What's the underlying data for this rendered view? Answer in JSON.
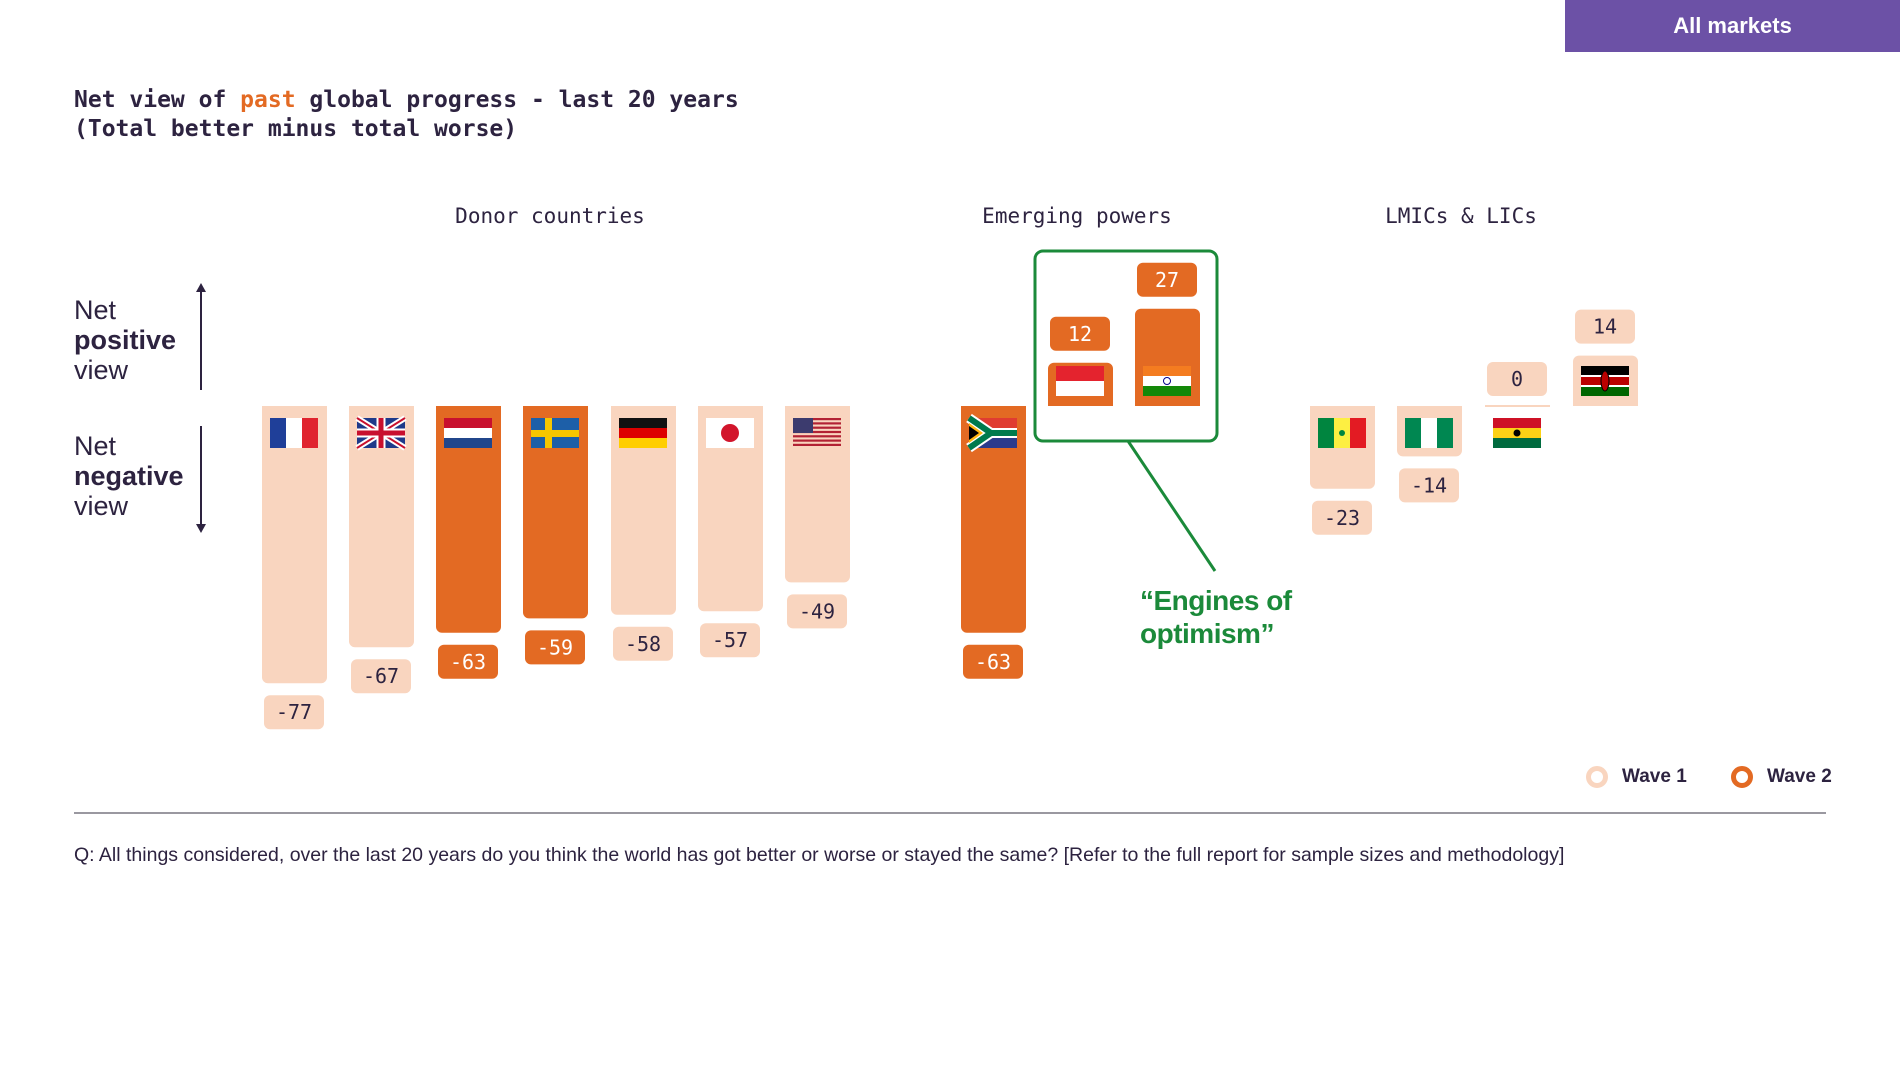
{
  "header": {
    "tab_label": "All markets"
  },
  "title": {
    "prefix": "Net view of ",
    "highlight": "past",
    "suffix": " global progress - last 20 years",
    "line2": "(Total better minus total worse)"
  },
  "axis_labels": {
    "positive": {
      "top": "Net",
      "bold": "positive",
      "bottom": "view"
    },
    "negative": {
      "top": "Net",
      "bold": "negative",
      "bottom": "view"
    }
  },
  "callout": {
    "line1": "“Engines of",
    "line2": "optimism”"
  },
  "legend": {
    "wave1": "Wave 1",
    "wave2": "Wave 2"
  },
  "footnote": "Q: All things considered, over the last 20 years do you think the world has got better or worse or stayed the same? [Refer to the full report for sample sizes and methodology]",
  "colors": {
    "wave1": "#f9d5bf",
    "wave2": "#e36a23",
    "accent_purple": "#6c51a6",
    "callout_green": "#1b8a3a",
    "text": "#2d2340"
  },
  "chart_data": {
    "type": "bar",
    "title": "Net view of past global progress - last 20 years (Total better minus total worse)",
    "groups": [
      {
        "label": "Donor countries",
        "items": [
          {
            "country": "France",
            "flag": "france-flag-icon",
            "value": -77,
            "wave": 1
          },
          {
            "country": "United Kingdom",
            "flag": "uk-flag-icon",
            "value": -67,
            "wave": 1
          },
          {
            "country": "Netherlands",
            "flag": "netherlands-flag-icon",
            "value": -63,
            "wave": 2
          },
          {
            "country": "Sweden",
            "flag": "sweden-flag-icon",
            "value": -59,
            "wave": 2
          },
          {
            "country": "Germany",
            "flag": "germany-flag-icon",
            "value": -58,
            "wave": 1
          },
          {
            "country": "Japan",
            "flag": "japan-flag-icon",
            "value": -57,
            "wave": 1
          },
          {
            "country": "United States",
            "flag": "usa-flag-icon",
            "value": -49,
            "wave": 1
          }
        ]
      },
      {
        "label": "Emerging powers",
        "items": [
          {
            "country": "South Africa",
            "flag": "south-africa-flag-icon",
            "value": -63,
            "wave": 2
          },
          {
            "country": "Indonesia",
            "flag": "indonesia-flag-icon",
            "value": 12,
            "wave": 2
          },
          {
            "country": "India",
            "flag": "india-flag-icon",
            "value": 27,
            "wave": 2
          }
        ]
      },
      {
        "label": "LMICs & LICs",
        "items": [
          {
            "country": "Senegal",
            "flag": "senegal-flag-icon",
            "value": -23,
            "wave": 1
          },
          {
            "country": "Nigeria",
            "flag": "nigeria-flag-icon",
            "value": -14,
            "wave": 1
          },
          {
            "country": "Ghana",
            "flag": "ghana-flag-icon",
            "value": 0,
            "wave": 1
          },
          {
            "country": "Kenya",
            "flag": "kenya-flag-icon",
            "value": 14,
            "wave": 1
          }
        ]
      }
    ],
    "legend": [
      "Wave 1",
      "Wave 2"
    ],
    "legend_position": "bottom-right",
    "grid": false
  }
}
